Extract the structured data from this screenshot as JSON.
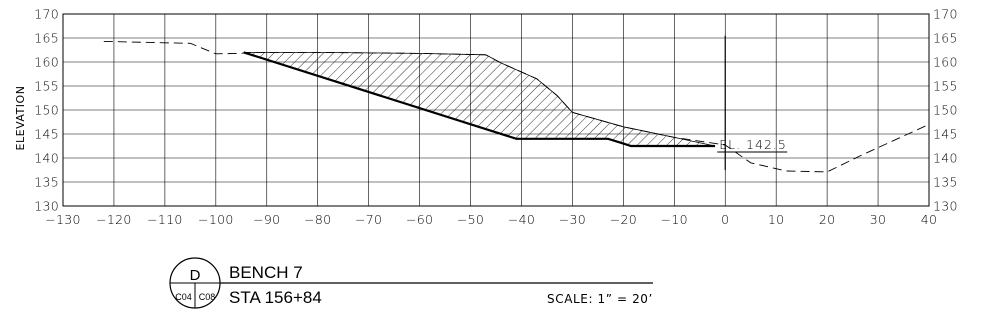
{
  "chart_data": {
    "type": "line",
    "title": "",
    "xlabel": "",
    "ylabel": "ELEVATION",
    "xlim": [
      -130,
      40
    ],
    "ylim": [
      130,
      170
    ],
    "xticks": [
      -130,
      -120,
      -110,
      -100,
      -90,
      -80,
      -70,
      -60,
      -50,
      -40,
      -30,
      -20,
      -10,
      0,
      10,
      20,
      30,
      40
    ],
    "xtick_labels": [
      "−130",
      "−120",
      "−110",
      "−100",
      "−90",
      "−80",
      "−70",
      "−60",
      "−50",
      "−40",
      "−30",
      "−20",
      "−10",
      "0",
      "10",
      "20",
      "30",
      "40"
    ],
    "yticks": [
      130,
      135,
      140,
      145,
      150,
      155,
      160,
      165,
      170
    ],
    "grid": true,
    "series": [
      {
        "style": "dashed",
        "x": [
          -122,
          -110,
          -105,
          -100,
          -95,
          -94,
          -80,
          -60,
          -47,
          -44,
          -37,
          -33,
          -30,
          -20,
          -10,
          0,
          5,
          12,
          20,
          27,
          40
        ],
        "y": [
          164.3,
          164,
          163.9,
          161.7,
          161.8,
          162,
          162,
          161.8,
          161.5,
          159.8,
          156.5,
          153,
          149.5,
          146.5,
          144.3,
          142.7,
          139,
          137.3,
          137.1,
          140.7,
          147
        ]
      },
      {
        "style": "solid-thick",
        "x": [
          -94.5,
          -41,
          -23,
          -20,
          -18.5,
          -2
        ],
        "y": [
          162,
          144,
          144,
          143,
          142.5,
          142.5
        ]
      }
    ],
    "hatched_region": {
      "top_x": [
        -94.5,
        -80,
        -60,
        -47,
        -44,
        -37,
        -33,
        -30,
        -20,
        -10,
        -2
      ],
      "top_y": [
        162,
        162,
        161.8,
        161.5,
        159.8,
        156.5,
        153,
        149.5,
        146.5,
        144.3,
        142.5
      ]
    },
    "vertical_line": {
      "x": 0,
      "y_from": 137.5,
      "y_to": 165.5
    },
    "annotations": [
      {
        "text": "EL. 142.5",
        "x": 0,
        "y": 142.5
      }
    ]
  },
  "title_block": {
    "detail_letter": "D",
    "sheet_left": "C04",
    "sheet_right": "C08",
    "line1": "BENCH 7",
    "line2": "STA 156+84",
    "scale": "SCALE: 1” = 20’"
  }
}
